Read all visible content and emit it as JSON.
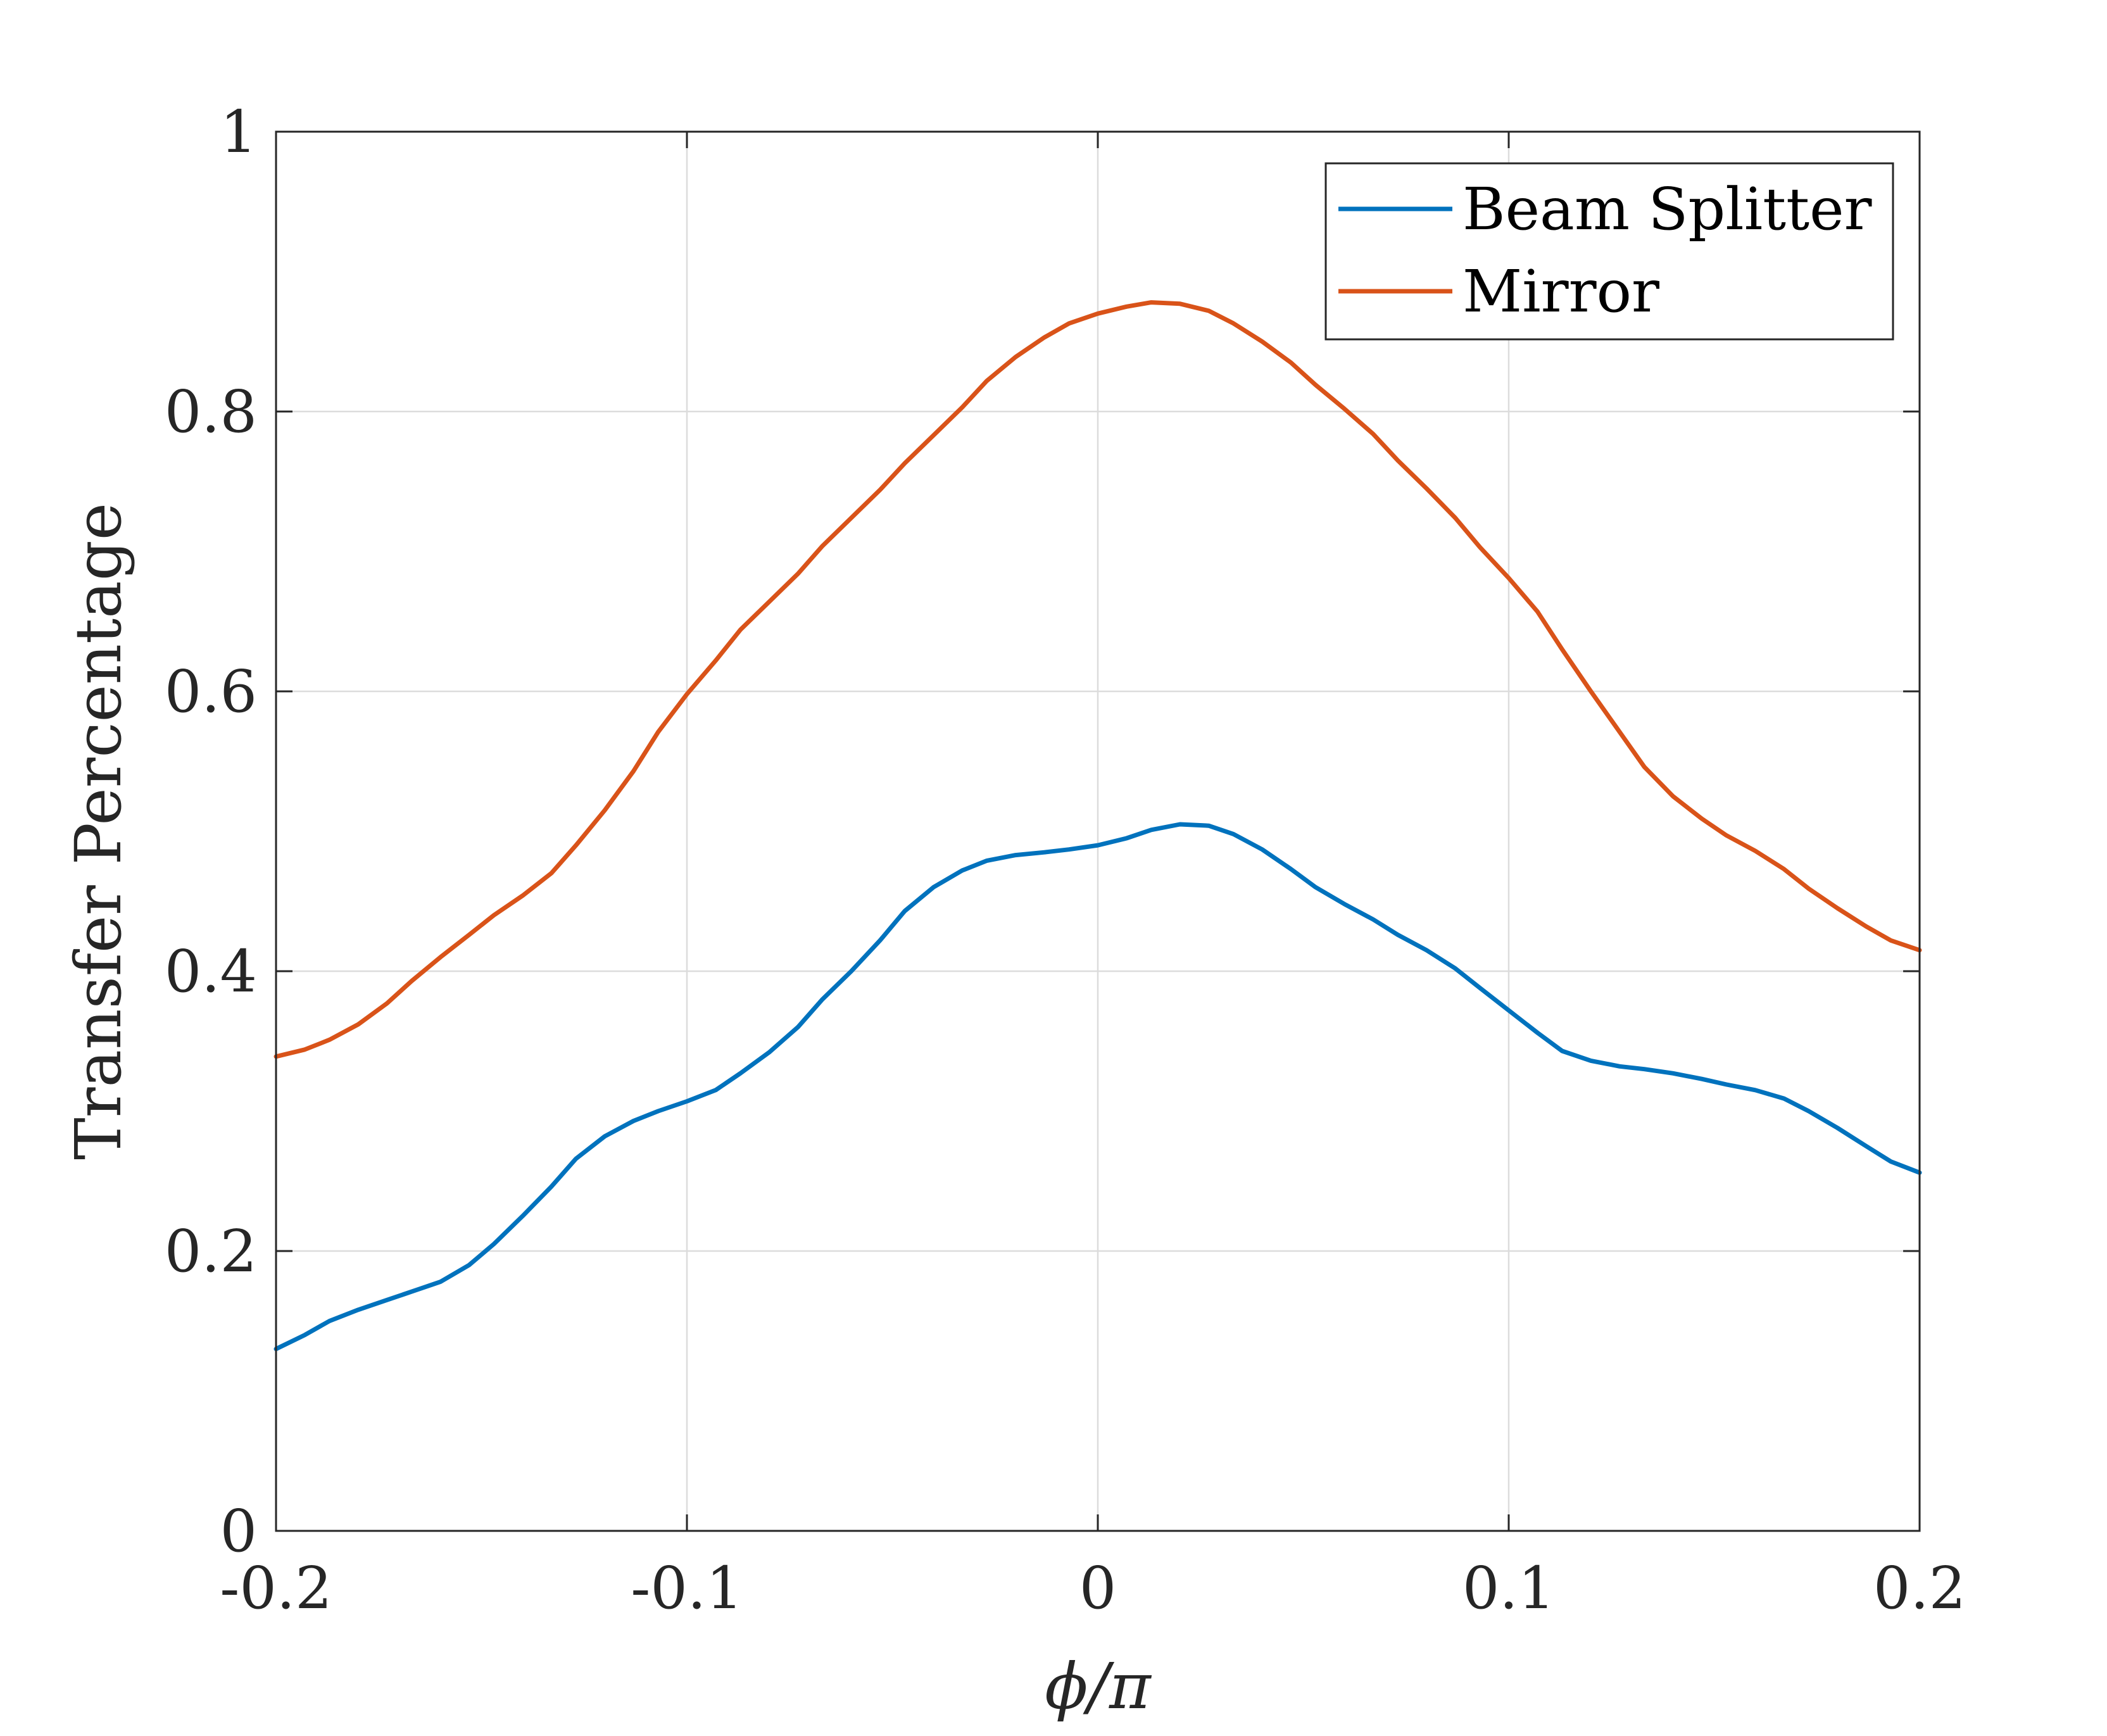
{
  "chart_data": {
    "type": "line",
    "xlabel": "ϕ/π",
    "ylabel": "Transfer Percentage",
    "xlim": [
      -0.2,
      0.2
    ],
    "ylim": [
      0,
      1
    ],
    "xticks": [
      -0.2,
      -0.1,
      0,
      0.1,
      0.2
    ],
    "xtick_labels": [
      "-0.2",
      "-0.1",
      "0",
      "0.1",
      "0.2"
    ],
    "yticks": [
      0,
      0.2,
      0.4,
      0.6,
      0.8,
      1
    ],
    "ytick_labels": [
      "0",
      "0.2",
      "0.4",
      "0.6",
      "0.8",
      "1"
    ],
    "grid": true,
    "legend_position": "top-right",
    "series": [
      {
        "name": "Beam Splitter",
        "color": "#0072BD",
        "x": [
          -0.2,
          -0.193,
          -0.187,
          -0.18,
          -0.173,
          -0.167,
          -0.16,
          -0.153,
          -0.147,
          -0.14,
          -0.133,
          -0.127,
          -0.12,
          -0.113,
          -0.107,
          -0.1,
          -0.093,
          -0.087,
          -0.08,
          -0.073,
          -0.067,
          -0.06,
          -0.053,
          -0.047,
          -0.04,
          -0.033,
          -0.027,
          -0.02,
          -0.013,
          -0.007,
          0,
          0.007,
          0.013,
          0.02,
          0.027,
          0.033,
          0.04,
          0.047,
          0.053,
          0.06,
          0.067,
          0.073,
          0.08,
          0.087,
          0.093,
          0.1,
          0.107,
          0.113,
          0.12,
          0.127,
          0.133,
          0.14,
          0.147,
          0.153,
          0.16,
          0.167,
          0.173,
          0.18,
          0.187,
          0.193,
          0.2
        ],
        "values": [
          0.13,
          0.14,
          0.15,
          0.158,
          0.165,
          0.171,
          0.178,
          0.19,
          0.205,
          0.225,
          0.246,
          0.266,
          0.282,
          0.293,
          0.3,
          0.307,
          0.315,
          0.327,
          0.342,
          0.36,
          0.38,
          0.4,
          0.422,
          0.443,
          0.46,
          0.472,
          0.479,
          0.483,
          0.485,
          0.487,
          0.49,
          0.495,
          0.501,
          0.505,
          0.504,
          0.498,
          0.487,
          0.473,
          0.46,
          0.448,
          0.437,
          0.426,
          0.415,
          0.402,
          0.388,
          0.372,
          0.356,
          0.343,
          0.336,
          0.332,
          0.33,
          0.327,
          0.323,
          0.319,
          0.315,
          0.309,
          0.3,
          0.288,
          0.275,
          0.264,
          0.256
        ]
      },
      {
        "name": "Mirror",
        "color": "#D95319",
        "x": [
          -0.2,
          -0.193,
          -0.187,
          -0.18,
          -0.173,
          -0.167,
          -0.16,
          -0.153,
          -0.147,
          -0.14,
          -0.133,
          -0.127,
          -0.12,
          -0.113,
          -0.107,
          -0.1,
          -0.093,
          -0.087,
          -0.08,
          -0.073,
          -0.067,
          -0.06,
          -0.053,
          -0.047,
          -0.04,
          -0.033,
          -0.027,
          -0.02,
          -0.013,
          -0.007,
          0,
          0.007,
          0.013,
          0.02,
          0.027,
          0.033,
          0.04,
          0.047,
          0.053,
          0.06,
          0.067,
          0.073,
          0.08,
          0.087,
          0.093,
          0.1,
          0.107,
          0.113,
          0.12,
          0.127,
          0.133,
          0.14,
          0.147,
          0.153,
          0.16,
          0.167,
          0.173,
          0.18,
          0.187,
          0.193,
          0.2
        ],
        "values": [
          0.339,
          0.344,
          0.351,
          0.362,
          0.377,
          0.393,
          0.41,
          0.426,
          0.44,
          0.454,
          0.47,
          0.49,
          0.515,
          0.543,
          0.571,
          0.598,
          0.622,
          0.644,
          0.664,
          0.684,
          0.704,
          0.724,
          0.744,
          0.763,
          0.783,
          0.803,
          0.822,
          0.839,
          0.853,
          0.863,
          0.87,
          0.875,
          0.878,
          0.877,
          0.872,
          0.863,
          0.85,
          0.835,
          0.819,
          0.802,
          0.784,
          0.765,
          0.745,
          0.724,
          0.703,
          0.681,
          0.657,
          0.63,
          0.6,
          0.571,
          0.546,
          0.525,
          0.509,
          0.497,
          0.486,
          0.473,
          0.459,
          0.445,
          0.432,
          0.422,
          0.415
        ]
      }
    ]
  }
}
